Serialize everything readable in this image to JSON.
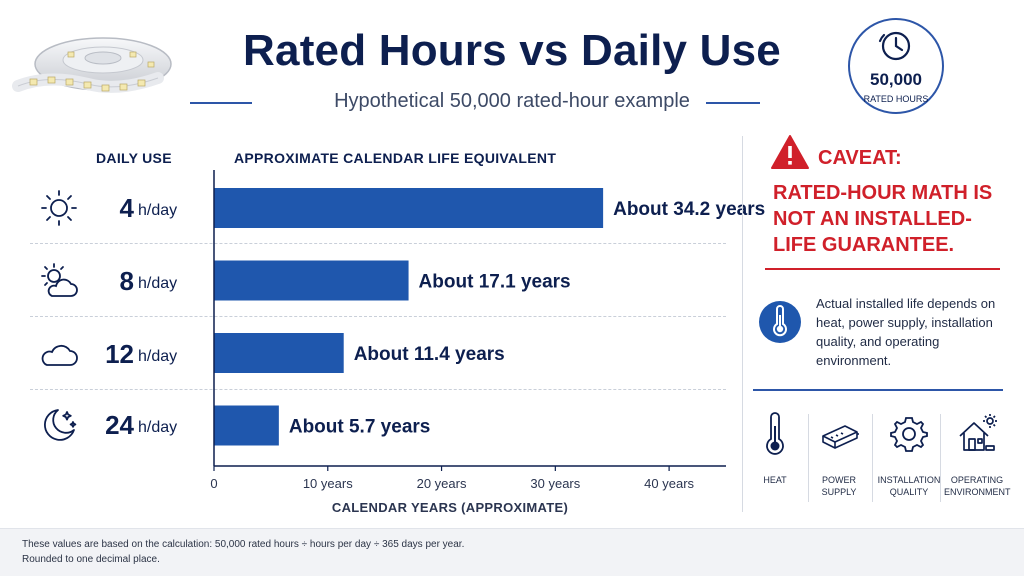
{
  "header": {
    "title": "Rated Hours vs Daily Use",
    "subtitle": "Hypothetical 50,000 rated-hour example",
    "badge_value": "50,000",
    "badge_label": "RATED HOURS"
  },
  "columns": {
    "daily_use": "DAILY USE",
    "life_equivalent": "APPROXIMATE CALENDAR LIFE EQUIVALENT"
  },
  "rows": [
    {
      "hours": "4",
      "unit": "h/day",
      "icon": "sun-icon"
    },
    {
      "hours": "8",
      "unit": "h/day",
      "icon": "partly-cloudy-icon"
    },
    {
      "hours": "12",
      "unit": "h/day",
      "icon": "cloud-icon"
    },
    {
      "hours": "24",
      "unit": "h/day",
      "icon": "moon-stars-icon"
    }
  ],
  "chart_data": {
    "type": "bar",
    "orientation": "horizontal",
    "categories": [
      "4 h/day",
      "8 h/day",
      "12 h/day",
      "24 h/day"
    ],
    "values": [
      34.2,
      17.1,
      11.4,
      5.7
    ],
    "data_labels": [
      "About 34.2 years",
      "About 17.1 years",
      "About 11.4 years",
      "About 5.7 years"
    ],
    "xlabel": "CALENDAR YEARS (APPROXIMATE)",
    "xlim": [
      0,
      45
    ],
    "xticks": [
      0,
      10,
      20,
      30,
      40
    ],
    "xtick_labels": [
      "0",
      "10 years",
      "20 years",
      "30 years",
      "40 years"
    ],
    "bar_color": "#1f57ad",
    "grid": false
  },
  "caveat": {
    "heading": "CAVEAT:",
    "body": "RATED-HOUR MATH IS NOT AN INSTALLED-LIFE GUARANTEE.",
    "color": "#d0202a"
  },
  "detail": {
    "text": "Actual installed life depends on heat, power supply, installation quality, and operating environment."
  },
  "factors": [
    {
      "label": "HEAT",
      "icon": "thermometer-icon"
    },
    {
      "label": "POWER SUPPLY",
      "icon": "power-supply-icon"
    },
    {
      "label": "INSTALLATION QUALITY",
      "icon": "gear-icon"
    },
    {
      "label": "OPERATING ENVIRONMENT",
      "icon": "home-environment-icon"
    }
  ],
  "footnote": {
    "line1": "These values are based on the calculation: 50,000 rated hours ÷ hours per day ÷ 365 days per year.",
    "line2": "Rounded to one decimal place."
  },
  "colors": {
    "navy": "#0d1f4f",
    "accent_blue": "#2d56a8",
    "bar_blue": "#1f57ad",
    "caveat_red": "#d0202a"
  }
}
